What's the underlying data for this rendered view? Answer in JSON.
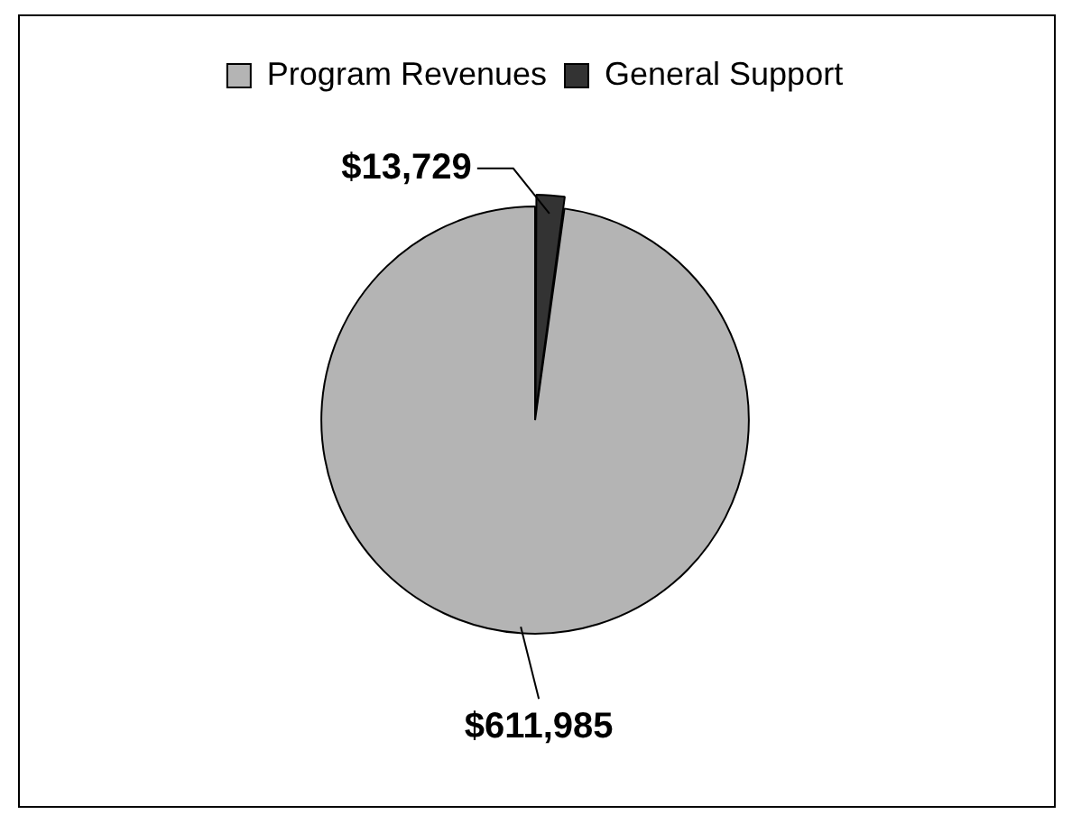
{
  "chart_data": {
    "type": "pie",
    "categories": [
      "Program Revenues",
      "General Support"
    ],
    "values": [
      611985,
      13729
    ],
    "colors": [
      "#b4b4b4",
      "#333333"
    ],
    "value_labels": [
      "$611,985",
      "$13,729"
    ],
    "legend": "top"
  }
}
